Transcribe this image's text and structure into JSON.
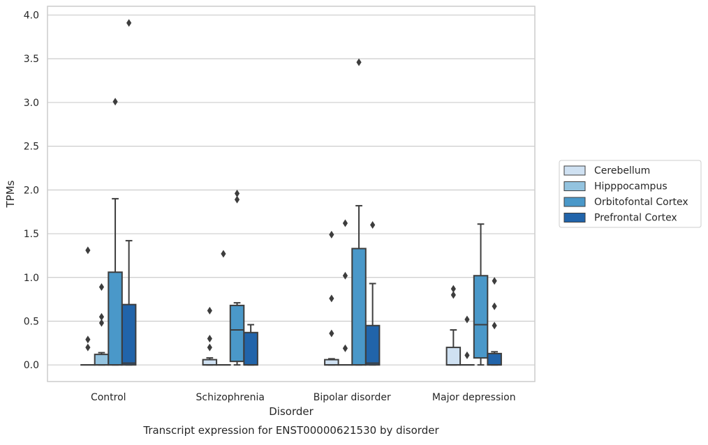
{
  "chart_data": {
    "type": "box",
    "xlabel": "Disorder",
    "ylabel": "TPMs",
    "caption": "Transcript expression for ENST00000621530 by disorder",
    "ylim": [
      -0.19,
      4.1
    ],
    "yticks": [
      0.0,
      0.5,
      1.0,
      1.5,
      2.0,
      2.5,
      3.0,
      3.5,
      4.0
    ],
    "ytick_labels": [
      "0.0",
      "0.5",
      "1.0",
      "1.5",
      "2.0",
      "2.5",
      "3.0",
      "3.5",
      "4.0"
    ],
    "grid": "horizontal",
    "legend_position": "right",
    "categories": [
      "Control",
      "Schizophrenia",
      "Bipolar disorder",
      "Major depression"
    ],
    "series": [
      {
        "name": "Cerebellum",
        "color": "#cfe1f2",
        "boxes": [
          {
            "whislo": 0.0,
            "q1": 0.0,
            "med": 0.0,
            "q3": 0.0,
            "whishi": 0.0,
            "fliers": [
              1.31,
              0.29,
              0.2
            ]
          },
          {
            "whislo": 0.0,
            "q1": 0.0,
            "med": 0.0,
            "q3": 0.06,
            "whishi": 0.08,
            "fliers": [
              0.62,
              0.3,
              0.2
            ]
          },
          {
            "whislo": 0.0,
            "q1": 0.0,
            "med": 0.0,
            "q3": 0.06,
            "whishi": 0.07,
            "fliers": [
              1.49,
              0.76,
              0.36
            ]
          },
          {
            "whislo": 0.0,
            "q1": 0.0,
            "med": 0.0,
            "q3": 0.2,
            "whishi": 0.4,
            "fliers": [
              0.87,
              0.8
            ]
          }
        ]
      },
      {
        "name": "Hipppocampus",
        "color": "#93c3df",
        "boxes": [
          {
            "whislo": 0.0,
            "q1": 0.0,
            "med": 0.0,
            "q3": 0.12,
            "whishi": 0.14,
            "fliers": [
              0.89,
              0.55,
              0.48
            ]
          },
          {
            "whislo": 0.0,
            "q1": 0.0,
            "med": 0.0,
            "q3": 0.0,
            "whishi": 0.0,
            "fliers": [
              1.27
            ]
          },
          {
            "whislo": 0.0,
            "q1": 0.0,
            "med": 0.0,
            "q3": 0.0,
            "whishi": 0.0,
            "fliers": [
              1.62,
              1.02,
              0.19
            ]
          },
          {
            "whislo": 0.0,
            "q1": 0.0,
            "med": 0.0,
            "q3": 0.0,
            "whishi": 0.0,
            "fliers": [
              0.52,
              0.11
            ]
          }
        ]
      },
      {
        "name": "Orbitofontal Cortex",
        "color": "#4a98c9",
        "boxes": [
          {
            "whislo": 0.0,
            "q1": 0.0,
            "med": 0.0,
            "q3": 1.06,
            "whishi": 1.9,
            "fliers": [
              3.01
            ]
          },
          {
            "whislo": 0.0,
            "q1": 0.04,
            "med": 0.4,
            "q3": 0.68,
            "whishi": 0.71,
            "fliers": [
              1.96,
              1.89
            ]
          },
          {
            "whislo": 0.0,
            "q1": 0.0,
            "med": 0.0,
            "q3": 1.33,
            "whishi": 1.82,
            "fliers": [
              3.46
            ]
          },
          {
            "whislo": 0.0,
            "q1": 0.08,
            "med": 0.46,
            "q3": 1.02,
            "whishi": 1.61,
            "fliers": []
          }
        ]
      },
      {
        "name": "Prefrontal Cortex",
        "color": "#2164aa",
        "boxes": [
          {
            "whislo": 0.0,
            "q1": 0.0,
            "med": 0.02,
            "q3": 0.69,
            "whishi": 1.42,
            "fliers": [
              3.91
            ]
          },
          {
            "whislo": 0.0,
            "q1": 0.0,
            "med": 0.0,
            "q3": 0.37,
            "whishi": 0.46,
            "fliers": []
          },
          {
            "whislo": 0.0,
            "q1": 0.0,
            "med": 0.02,
            "q3": 0.45,
            "whishi": 0.93,
            "fliers": [
              1.6
            ]
          },
          {
            "whislo": 0.0,
            "q1": 0.0,
            "med": 0.0,
            "q3": 0.13,
            "whishi": 0.15,
            "fliers": [
              0.96,
              0.67,
              0.45
            ]
          }
        ]
      }
    ]
  }
}
